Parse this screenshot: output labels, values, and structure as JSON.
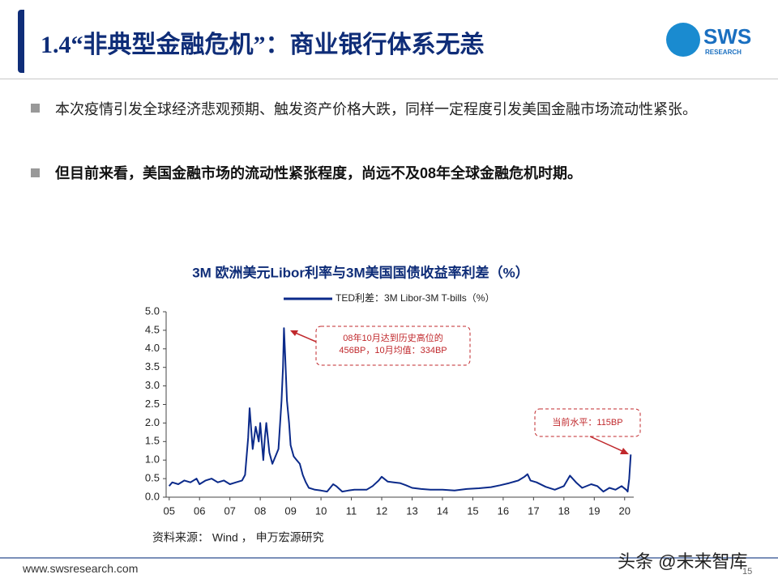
{
  "header": {
    "title": "1.4“非典型金融危机”：商业银行体系无恙",
    "logo": "SWS",
    "logo_sub": "RESEARCH"
  },
  "bullets": [
    "本次疫情引发全球经济悲观预期、触发资产价格大跌，同样一定程度引发美国金融市场流动性紧张。",
    "但目前来看，美国金融市场的流动性紧张程度，尚远不及08年全球金融危机时期。"
  ],
  "chart_data": {
    "type": "line",
    "title": "3M 欧洲美元Libor利率与3M美国国债收益率利差（%）",
    "x": [
      2005.0,
      2005.1,
      2005.3,
      2005.5,
      2005.7,
      2005.9,
      2006.0,
      2006.2,
      2006.4,
      2006.6,
      2006.8,
      2007.0,
      2007.2,
      2007.4,
      2007.5,
      2007.6,
      2007.65,
      2007.75,
      2007.85,
      2007.95,
      2008.0,
      2008.1,
      2008.15,
      2008.2,
      2008.3,
      2008.4,
      2008.5,
      2008.6,
      2008.7,
      2008.75,
      2008.78,
      2008.82,
      2008.88,
      2008.95,
      2009.0,
      2009.1,
      2009.2,
      2009.3,
      2009.4,
      2009.5,
      2009.6,
      2009.8,
      2010.0,
      2010.2,
      2010.4,
      2010.5,
      2010.7,
      2010.9,
      2011.1,
      2011.3,
      2011.5,
      2011.7,
      2011.9,
      2012.0,
      2012.2,
      2012.4,
      2012.6,
      2012.8,
      2013.0,
      2013.3,
      2013.6,
      2014.0,
      2014.4,
      2014.8,
      2015.2,
      2015.6,
      2015.9,
      2016.2,
      2016.5,
      2016.7,
      2016.8,
      2016.9,
      2017.1,
      2017.4,
      2017.7,
      2018.0,
      2018.2,
      2018.4,
      2018.6,
      2018.9,
      2019.1,
      2019.3,
      2019.5,
      2019.7,
      2019.9,
      2020.05,
      2020.1,
      2020.15,
      2020.2
    ],
    "series": [
      {
        "name": "TED利差：3M Libor-3M T-bills（%）",
        "color": "#0b2a8a",
        "values": [
          0.3,
          0.4,
          0.35,
          0.45,
          0.4,
          0.5,
          0.35,
          0.45,
          0.5,
          0.4,
          0.45,
          0.35,
          0.4,
          0.45,
          0.6,
          1.6,
          2.4,
          1.3,
          1.9,
          1.5,
          2.0,
          1.0,
          1.6,
          2.0,
          1.2,
          0.9,
          1.1,
          1.3,
          2.6,
          3.5,
          4.56,
          3.8,
          2.6,
          2.0,
          1.4,
          1.1,
          1.0,
          0.9,
          0.6,
          0.4,
          0.25,
          0.2,
          0.18,
          0.15,
          0.35,
          0.3,
          0.15,
          0.18,
          0.2,
          0.2,
          0.2,
          0.3,
          0.45,
          0.55,
          0.42,
          0.4,
          0.38,
          0.32,
          0.25,
          0.22,
          0.2,
          0.2,
          0.18,
          0.22,
          0.24,
          0.27,
          0.32,
          0.38,
          0.45,
          0.55,
          0.62,
          0.45,
          0.4,
          0.28,
          0.2,
          0.3,
          0.58,
          0.4,
          0.25,
          0.35,
          0.3,
          0.15,
          0.25,
          0.2,
          0.3,
          0.2,
          0.15,
          0.5,
          1.15
        ]
      }
    ],
    "xlim": [
      2004.9,
      2020.3
    ],
    "xticks": [
      {
        "value": 2005,
        "label": "05"
      },
      {
        "value": 2006,
        "label": "06"
      },
      {
        "value": 2007,
        "label": "07"
      },
      {
        "value": 2008,
        "label": "08"
      },
      {
        "value": 2009,
        "label": "09"
      },
      {
        "value": 2010,
        "label": "10"
      },
      {
        "value": 2011,
        "label": "11"
      },
      {
        "value": 2012,
        "label": "12"
      },
      {
        "value": 2013,
        "label": "13"
      },
      {
        "value": 2014,
        "label": "14"
      },
      {
        "value": 2015,
        "label": "15"
      },
      {
        "value": 2016,
        "label": "16"
      },
      {
        "value": 2017,
        "label": "17"
      },
      {
        "value": 2018,
        "label": "18"
      },
      {
        "value": 2019,
        "label": "19"
      },
      {
        "value": 2020,
        "label": "20"
      }
    ],
    "ylim": [
      0,
      5
    ],
    "yticks": [
      {
        "value": 0,
        "label": "0.0"
      },
      0.5,
      {
        "value": 1,
        "label": "1.0"
      },
      1.5,
      {
        "value": 2,
        "label": "2.0"
      },
      2.5,
      {
        "value": 3,
        "label": "3.0"
      },
      3.5,
      {
        "value": 4,
        "label": "4.0"
      },
      4.5,
      {
        "value": 5,
        "label": "5.0"
      }
    ],
    "annotations": [
      "08年10月达到历史高位的",
      "456BP，10月均值：334BP",
      "当前水平：115BP"
    ],
    "source": "资料来源： Wind ， 申万宏源研究"
  },
  "footer": {
    "url": "www.swsresearch.com",
    "page": "15",
    "watermark": "头条 @未来智库"
  }
}
